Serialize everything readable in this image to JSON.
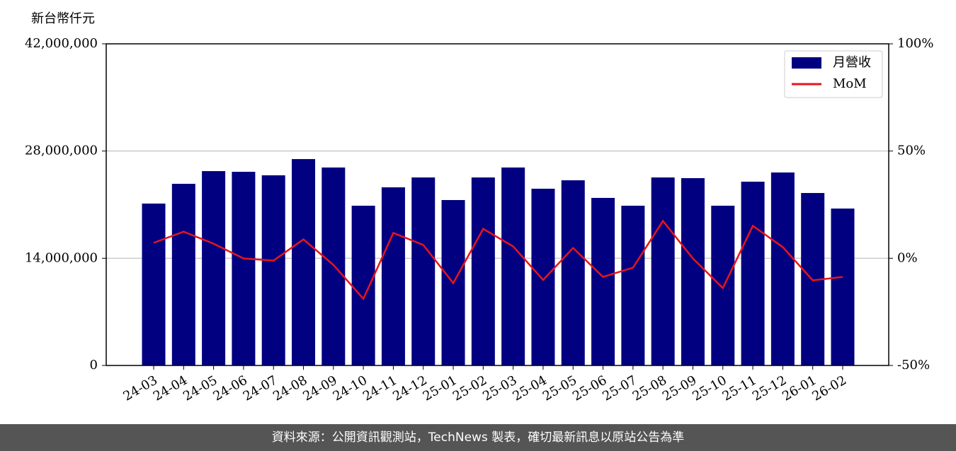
{
  "chart_data": {
    "type": "bar_line",
    "ylabel": "新台幣仟元",
    "categories": [
      "24-03",
      "24-04",
      "24-05",
      "24-06",
      "24-07",
      "24-08",
      "24-09",
      "24-10",
      "24-11",
      "24-12",
      "25-01",
      "25-02",
      "25-03",
      "25-04",
      "25-05",
      "25-06",
      "25-07",
      "25-08",
      "25-09",
      "25-10",
      "25-11",
      "25-12",
      "26-01",
      "26-02"
    ],
    "series": [
      {
        "name": "月營收",
        "color": "#000080",
        "type": "bar",
        "values": [
          21140000,
          23720000,
          25380000,
          25290000,
          24830000,
          26950000,
          25850000,
          20860000,
          23260000,
          24550000,
          21600000,
          24550000,
          25850000,
          23080000,
          24180000,
          21880000,
          20860000,
          24550000,
          24460000,
          20860000,
          24000000,
          25200000,
          22520000,
          20490000
        ]
      },
      {
        "name": "MoM",
        "color": "#e8141c",
        "type": "line",
        "axis": "y2",
        "values": [
          7.2,
          12.4,
          6.8,
          -0.1,
          -1.1,
          8.8,
          -3.1,
          -18.9,
          11.8,
          6.2,
          -11.6,
          13.7,
          5.5,
          -10.1,
          4.8,
          -8.7,
          -4.4,
          17.4,
          -0.1,
          -13.9,
          15.1,
          5.2,
          -10.3,
          -8.7
        ]
      }
    ],
    "ylim": [
      0,
      42000000
    ],
    "yticks": [
      0,
      {
        "value": 14000000,
        "label": "14,000,000"
      },
      {
        "value": 28000000,
        "label": "28,000,000"
      },
      {
        "value": 42000000,
        "label": "42,000,000"
      }
    ],
    "y2lim": [
      -50,
      100
    ],
    "y2ticks": [
      {
        "value": -50,
        "label": "-50%"
      },
      {
        "value": 0,
        "label": "0%"
      },
      {
        "value": 50,
        "label": "50%"
      },
      {
        "value": 100,
        "label": "100%"
      }
    ],
    "grid": true,
    "legend": "upper right"
  },
  "footer": "資料來源：公開資訊觀測站，TechNews 製表，確切最新訊息以原站公告為準"
}
